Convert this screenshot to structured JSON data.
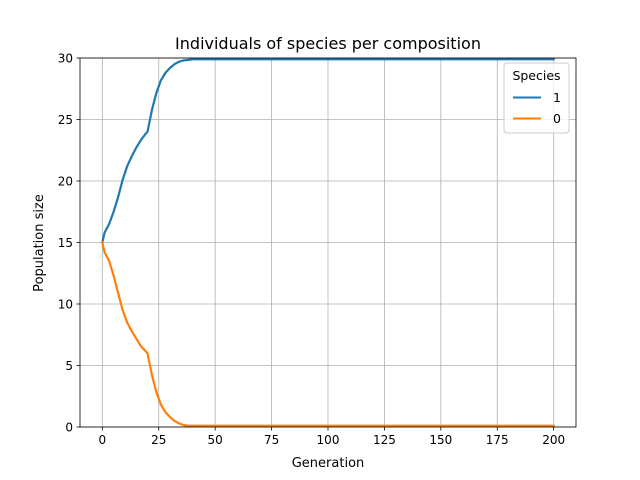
{
  "chart_data": {
    "type": "line",
    "title": "Individuals of species per composition",
    "xlabel": "Generation",
    "ylabel": "Population size",
    "xlim": [
      -9.9,
      209.9
    ],
    "ylim": [
      0,
      30
    ],
    "xticks": [
      0,
      25,
      50,
      75,
      100,
      125,
      150,
      175,
      200
    ],
    "yticks": [
      0,
      5,
      10,
      15,
      20,
      25,
      30
    ],
    "grid": true,
    "legend": {
      "title": "Species",
      "placement": "top-right"
    },
    "series": [
      {
        "name": "1",
        "color": "#1f77b4",
        "x": [
          0,
          1,
          3,
          5,
          7,
          9,
          11,
          13,
          15,
          17,
          19,
          20,
          22,
          24,
          26,
          28,
          30,
          32,
          34,
          36,
          38,
          40,
          50,
          100,
          150,
          200
        ],
        "y": [
          15,
          15.8,
          16.5,
          17.5,
          18.7,
          20.1,
          21.2,
          22.0,
          22.7,
          23.3,
          23.8,
          24.0,
          25.8,
          27.2,
          28.2,
          28.8,
          29.2,
          29.5,
          29.7,
          29.8,
          29.85,
          29.9,
          29.9,
          29.9,
          29.9,
          29.9
        ]
      },
      {
        "name": "0",
        "color": "#ff7f0e",
        "x": [
          0,
          1,
          3,
          5,
          7,
          9,
          11,
          13,
          15,
          17,
          19,
          20,
          22,
          24,
          26,
          28,
          30,
          32,
          34,
          36,
          38,
          40,
          50,
          100,
          150,
          200
        ],
        "y": [
          15,
          14.2,
          13.5,
          12.3,
          10.9,
          9.5,
          8.5,
          7.8,
          7.2,
          6.6,
          6.2,
          6.0,
          4.2,
          2.8,
          1.8,
          1.2,
          0.8,
          0.5,
          0.3,
          0.15,
          0.1,
          0.1,
          0.1,
          0.1,
          0.1,
          0.1
        ]
      }
    ]
  }
}
